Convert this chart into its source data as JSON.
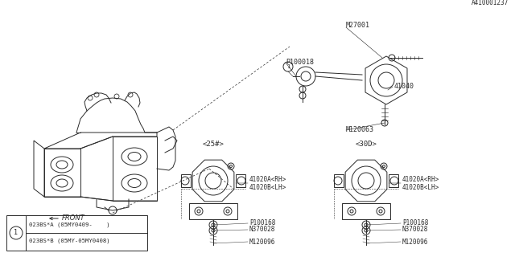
{
  "bg_color": "#ffffff",
  "line_color": "#2a2a2a",
  "part_number_ref": "A410001237",
  "legend_rows": [
    "023BS*B (05MY-05MY0408)",
    "023BS*A (05MY0409-    )"
  ],
  "top_right_labels": [
    "M27001",
    "P100018",
    "41040",
    "M120063"
  ],
  "mount_labels_25": [
    "<25#>",
    "41020A<RH>",
    "41020B<LH>",
    "P100168",
    "N370028",
    "M120096"
  ],
  "mount_labels_30": [
    "<30D>",
    "41020A<RH>",
    "41020B<LH>",
    "P100168",
    "N370028",
    "M120096"
  ],
  "front_text": "FRONT"
}
